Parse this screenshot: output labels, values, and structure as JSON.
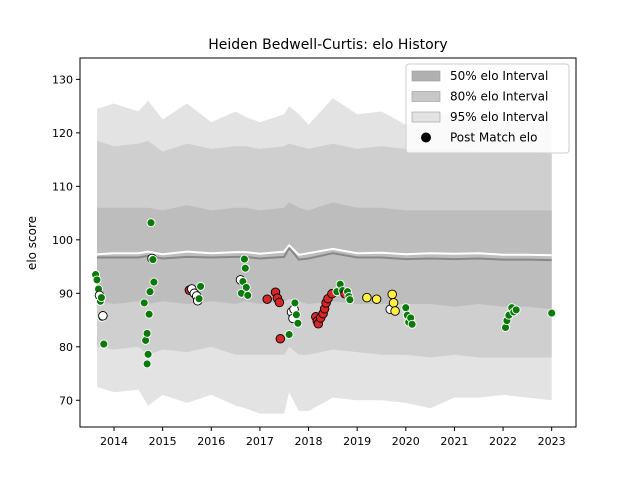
{
  "chart_data": {
    "type": "area",
    "title": "Heiden Bedwell-Curtis: elo History",
    "xlabel": "",
    "ylabel": "elo score",
    "xlim": [
      2013.3,
      2023.5
    ],
    "ylim": [
      65,
      134
    ],
    "x_ticks": [
      2014,
      2015,
      2016,
      2017,
      2018,
      2019,
      2020,
      2021,
      2022,
      2023
    ],
    "y_ticks": [
      70,
      80,
      90,
      100,
      110,
      120,
      130
    ],
    "grid": false,
    "legend_position": "top-right",
    "legend": [
      {
        "label": "50% elo Interval",
        "kind": "band",
        "color": "#b0b0b0"
      },
      {
        "label": "80% elo Interval",
        "kind": "band",
        "color": "#c8c8c8"
      },
      {
        "label": "95% elo Interval",
        "kind": "band",
        "color": "#e3e3e3"
      },
      {
        "label": "Post Match elo",
        "kind": "marker",
        "color": "#000000"
      }
    ],
    "colors": {
      "green": "#0a7a0a",
      "red": "#d62728",
      "yellow": "#ffee44",
      "white": "#ffffff"
    },
    "bands": {
      "x": [
        2013.65,
        2014.0,
        2014.5,
        2014.7,
        2015.0,
        2015.5,
        2016.0,
        2016.5,
        2016.7,
        2017.0,
        2017.5,
        2017.6,
        2017.8,
        2018.0,
        2018.5,
        2019.0,
        2019.5,
        2020.0,
        2020.5,
        2021.0,
        2021.5,
        2022.0,
        2022.5,
        2023.0
      ],
      "p95_upper": [
        124.5,
        125.5,
        124.0,
        126.0,
        122.5,
        125.5,
        122.0,
        124.0,
        123.0,
        122.0,
        123.5,
        125.0,
        123.5,
        121.5,
        126.5,
        123.5,
        124.0,
        121.5,
        123.0,
        123.5,
        123.0,
        122.5,
        122.0,
        121.5
      ],
      "p80_upper": [
        118.5,
        117.5,
        118.0,
        118.5,
        116.5,
        118.0,
        117.0,
        117.5,
        117.5,
        117.0,
        117.5,
        118.0,
        117.5,
        117.0,
        118.0,
        117.0,
        117.5,
        117.0,
        117.0,
        117.0,
        116.5,
        116.5,
        116.5,
        116.0
      ],
      "p50_upper": [
        106.0,
        106.0,
        106.0,
        106.0,
        105.5,
        106.5,
        105.5,
        106.0,
        106.0,
        105.5,
        106.0,
        107.0,
        106.0,
        105.5,
        107.0,
        106.0,
        106.0,
        105.5,
        105.5,
        105.5,
        105.5,
        105.5,
        105.5,
        105.5
      ],
      "p50_lower": [
        88.5,
        88.0,
        88.5,
        88.0,
        88.5,
        88.0,
        88.5,
        88.0,
        88.5,
        88.0,
        88.5,
        89.0,
        88.5,
        88.0,
        88.5,
        88.0,
        88.0,
        88.0,
        88.0,
        87.5,
        88.0,
        87.5,
        87.5,
        87.0
      ],
      "p80_lower": [
        80.0,
        79.5,
        80.0,
        78.5,
        79.5,
        79.0,
        80.0,
        78.5,
        78.5,
        78.5,
        78.5,
        80.0,
        78.5,
        78.5,
        79.5,
        79.0,
        78.5,
        78.5,
        78.0,
        78.5,
        78.0,
        78.0,
        78.0,
        78.0
      ],
      "p95_lower": [
        72.5,
        71.5,
        72.0,
        69.0,
        71.0,
        69.5,
        71.0,
        69.0,
        68.5,
        67.5,
        67.5,
        71.5,
        68.0,
        68.0,
        70.5,
        70.0,
        70.0,
        69.5,
        68.5,
        70.5,
        70.5,
        71.0,
        70.5,
        70.0
      ],
      "median_line": [
        96.7,
        96.7,
        96.7,
        97.0,
        96.5,
        96.8,
        96.7,
        96.8,
        96.8,
        96.5,
        96.8,
        98.5,
        96.3,
        96.5,
        97.5,
        96.7,
        96.7,
        96.4,
        96.5,
        96.4,
        96.5,
        96.3,
        96.3,
        96.2
      ],
      "mean_line": [
        97.3,
        97.5,
        97.5,
        97.8,
        97.3,
        97.8,
        97.5,
        97.7,
        97.7,
        97.4,
        97.8,
        99.0,
        97.2,
        97.5,
        98.3,
        97.5,
        97.6,
        97.3,
        97.5,
        97.4,
        97.5,
        97.2,
        97.2,
        97.1
      ]
    },
    "points": [
      {
        "x": 2013.62,
        "y": 93.5,
        "c": "green"
      },
      {
        "x": 2013.65,
        "y": 92.5,
        "c": "green"
      },
      {
        "x": 2013.68,
        "y": 90.8,
        "c": "green"
      },
      {
        "x": 2013.7,
        "y": 89.6,
        "c": "white"
      },
      {
        "x": 2013.72,
        "y": 88.5,
        "c": "green"
      },
      {
        "x": 2013.74,
        "y": 89.2,
        "c": "green"
      },
      {
        "x": 2013.75,
        "y": 85.5,
        "c": "green"
      },
      {
        "x": 2013.77,
        "y": 85.8,
        "c": "white"
      },
      {
        "x": 2013.79,
        "y": 80.5,
        "c": "green"
      },
      {
        "x": 2014.62,
        "y": 88.2,
        "c": "green"
      },
      {
        "x": 2014.65,
        "y": 81.2,
        "c": "green"
      },
      {
        "x": 2014.68,
        "y": 82.5,
        "c": "green"
      },
      {
        "x": 2014.68,
        "y": 76.8,
        "c": "green"
      },
      {
        "x": 2014.7,
        "y": 78.6,
        "c": "green"
      },
      {
        "x": 2014.72,
        "y": 86.1,
        "c": "green"
      },
      {
        "x": 2014.74,
        "y": 90.3,
        "c": "green"
      },
      {
        "x": 2014.76,
        "y": 103.2,
        "c": "green"
      },
      {
        "x": 2014.78,
        "y": 96.5,
        "c": "white"
      },
      {
        "x": 2014.8,
        "y": 96.3,
        "c": "green"
      },
      {
        "x": 2014.82,
        "y": 92.1,
        "c": "green"
      },
      {
        "x": 2015.55,
        "y": 90.6,
        "c": "red"
      },
      {
        "x": 2015.6,
        "y": 90.8,
        "c": "white"
      },
      {
        "x": 2015.65,
        "y": 90.0,
        "c": "white"
      },
      {
        "x": 2015.7,
        "y": 89.5,
        "c": "white"
      },
      {
        "x": 2015.72,
        "y": 88.6,
        "c": "white"
      },
      {
        "x": 2015.75,
        "y": 89.0,
        "c": "green"
      },
      {
        "x": 2015.78,
        "y": 91.3,
        "c": "green"
      },
      {
        "x": 2016.6,
        "y": 92.5,
        "c": "white"
      },
      {
        "x": 2016.62,
        "y": 90.0,
        "c": "green"
      },
      {
        "x": 2016.65,
        "y": 92.2,
        "c": "green"
      },
      {
        "x": 2016.68,
        "y": 96.4,
        "c": "green"
      },
      {
        "x": 2016.7,
        "y": 94.7,
        "c": "green"
      },
      {
        "x": 2016.72,
        "y": 91.1,
        "c": "green"
      },
      {
        "x": 2016.75,
        "y": 89.6,
        "c": "green"
      },
      {
        "x": 2017.15,
        "y": 88.9,
        "c": "red"
      },
      {
        "x": 2017.32,
        "y": 90.2,
        "c": "red"
      },
      {
        "x": 2017.36,
        "y": 89.1,
        "c": "red"
      },
      {
        "x": 2017.4,
        "y": 88.3,
        "c": "red"
      },
      {
        "x": 2017.42,
        "y": 81.5,
        "c": "red"
      },
      {
        "x": 2017.6,
        "y": 82.3,
        "c": "green"
      },
      {
        "x": 2017.65,
        "y": 86.5,
        "c": "white"
      },
      {
        "x": 2017.68,
        "y": 85.3,
        "c": "white"
      },
      {
        "x": 2017.7,
        "y": 87.0,
        "c": "white"
      },
      {
        "x": 2017.72,
        "y": 88.2,
        "c": "green"
      },
      {
        "x": 2017.75,
        "y": 86.0,
        "c": "green"
      },
      {
        "x": 2017.78,
        "y": 84.4,
        "c": "green"
      },
      {
        "x": 2018.15,
        "y": 85.6,
        "c": "red"
      },
      {
        "x": 2018.18,
        "y": 84.8,
        "c": "red"
      },
      {
        "x": 2018.2,
        "y": 84.3,
        "c": "red"
      },
      {
        "x": 2018.25,
        "y": 85.4,
        "c": "red"
      },
      {
        "x": 2018.3,
        "y": 86.2,
        "c": "red"
      },
      {
        "x": 2018.33,
        "y": 87.1,
        "c": "red"
      },
      {
        "x": 2018.36,
        "y": 88.2,
        "c": "red"
      },
      {
        "x": 2018.4,
        "y": 89.0,
        "c": "red"
      },
      {
        "x": 2018.48,
        "y": 89.9,
        "c": "red"
      },
      {
        "x": 2018.58,
        "y": 90.3,
        "c": "green"
      },
      {
        "x": 2018.65,
        "y": 91.7,
        "c": "green"
      },
      {
        "x": 2018.7,
        "y": 90.5,
        "c": "green"
      },
      {
        "x": 2018.75,
        "y": 89.9,
        "c": "red"
      },
      {
        "x": 2018.8,
        "y": 90.3,
        "c": "green"
      },
      {
        "x": 2018.83,
        "y": 89.4,
        "c": "green"
      },
      {
        "x": 2018.85,
        "y": 88.8,
        "c": "green"
      },
      {
        "x": 2019.2,
        "y": 89.2,
        "c": "yellow"
      },
      {
        "x": 2019.4,
        "y": 88.9,
        "c": "yellow"
      },
      {
        "x": 2019.68,
        "y": 87.0,
        "c": "white"
      },
      {
        "x": 2019.72,
        "y": 89.8,
        "c": "yellow"
      },
      {
        "x": 2019.75,
        "y": 88.2,
        "c": "yellow"
      },
      {
        "x": 2019.78,
        "y": 86.7,
        "c": "yellow"
      },
      {
        "x": 2020.0,
        "y": 87.3,
        "c": "green"
      },
      {
        "x": 2020.03,
        "y": 85.9,
        "c": "green"
      },
      {
        "x": 2020.06,
        "y": 84.6,
        "c": "green"
      },
      {
        "x": 2020.1,
        "y": 85.4,
        "c": "green"
      },
      {
        "x": 2020.13,
        "y": 84.2,
        "c": "green"
      },
      {
        "x": 2022.05,
        "y": 83.6,
        "c": "green"
      },
      {
        "x": 2022.08,
        "y": 84.9,
        "c": "green"
      },
      {
        "x": 2022.12,
        "y": 85.9,
        "c": "green"
      },
      {
        "x": 2022.18,
        "y": 87.3,
        "c": "green"
      },
      {
        "x": 2022.22,
        "y": 86.5,
        "c": "green"
      },
      {
        "x": 2022.27,
        "y": 86.9,
        "c": "green"
      },
      {
        "x": 2023.0,
        "y": 86.3,
        "c": "green"
      }
    ]
  }
}
